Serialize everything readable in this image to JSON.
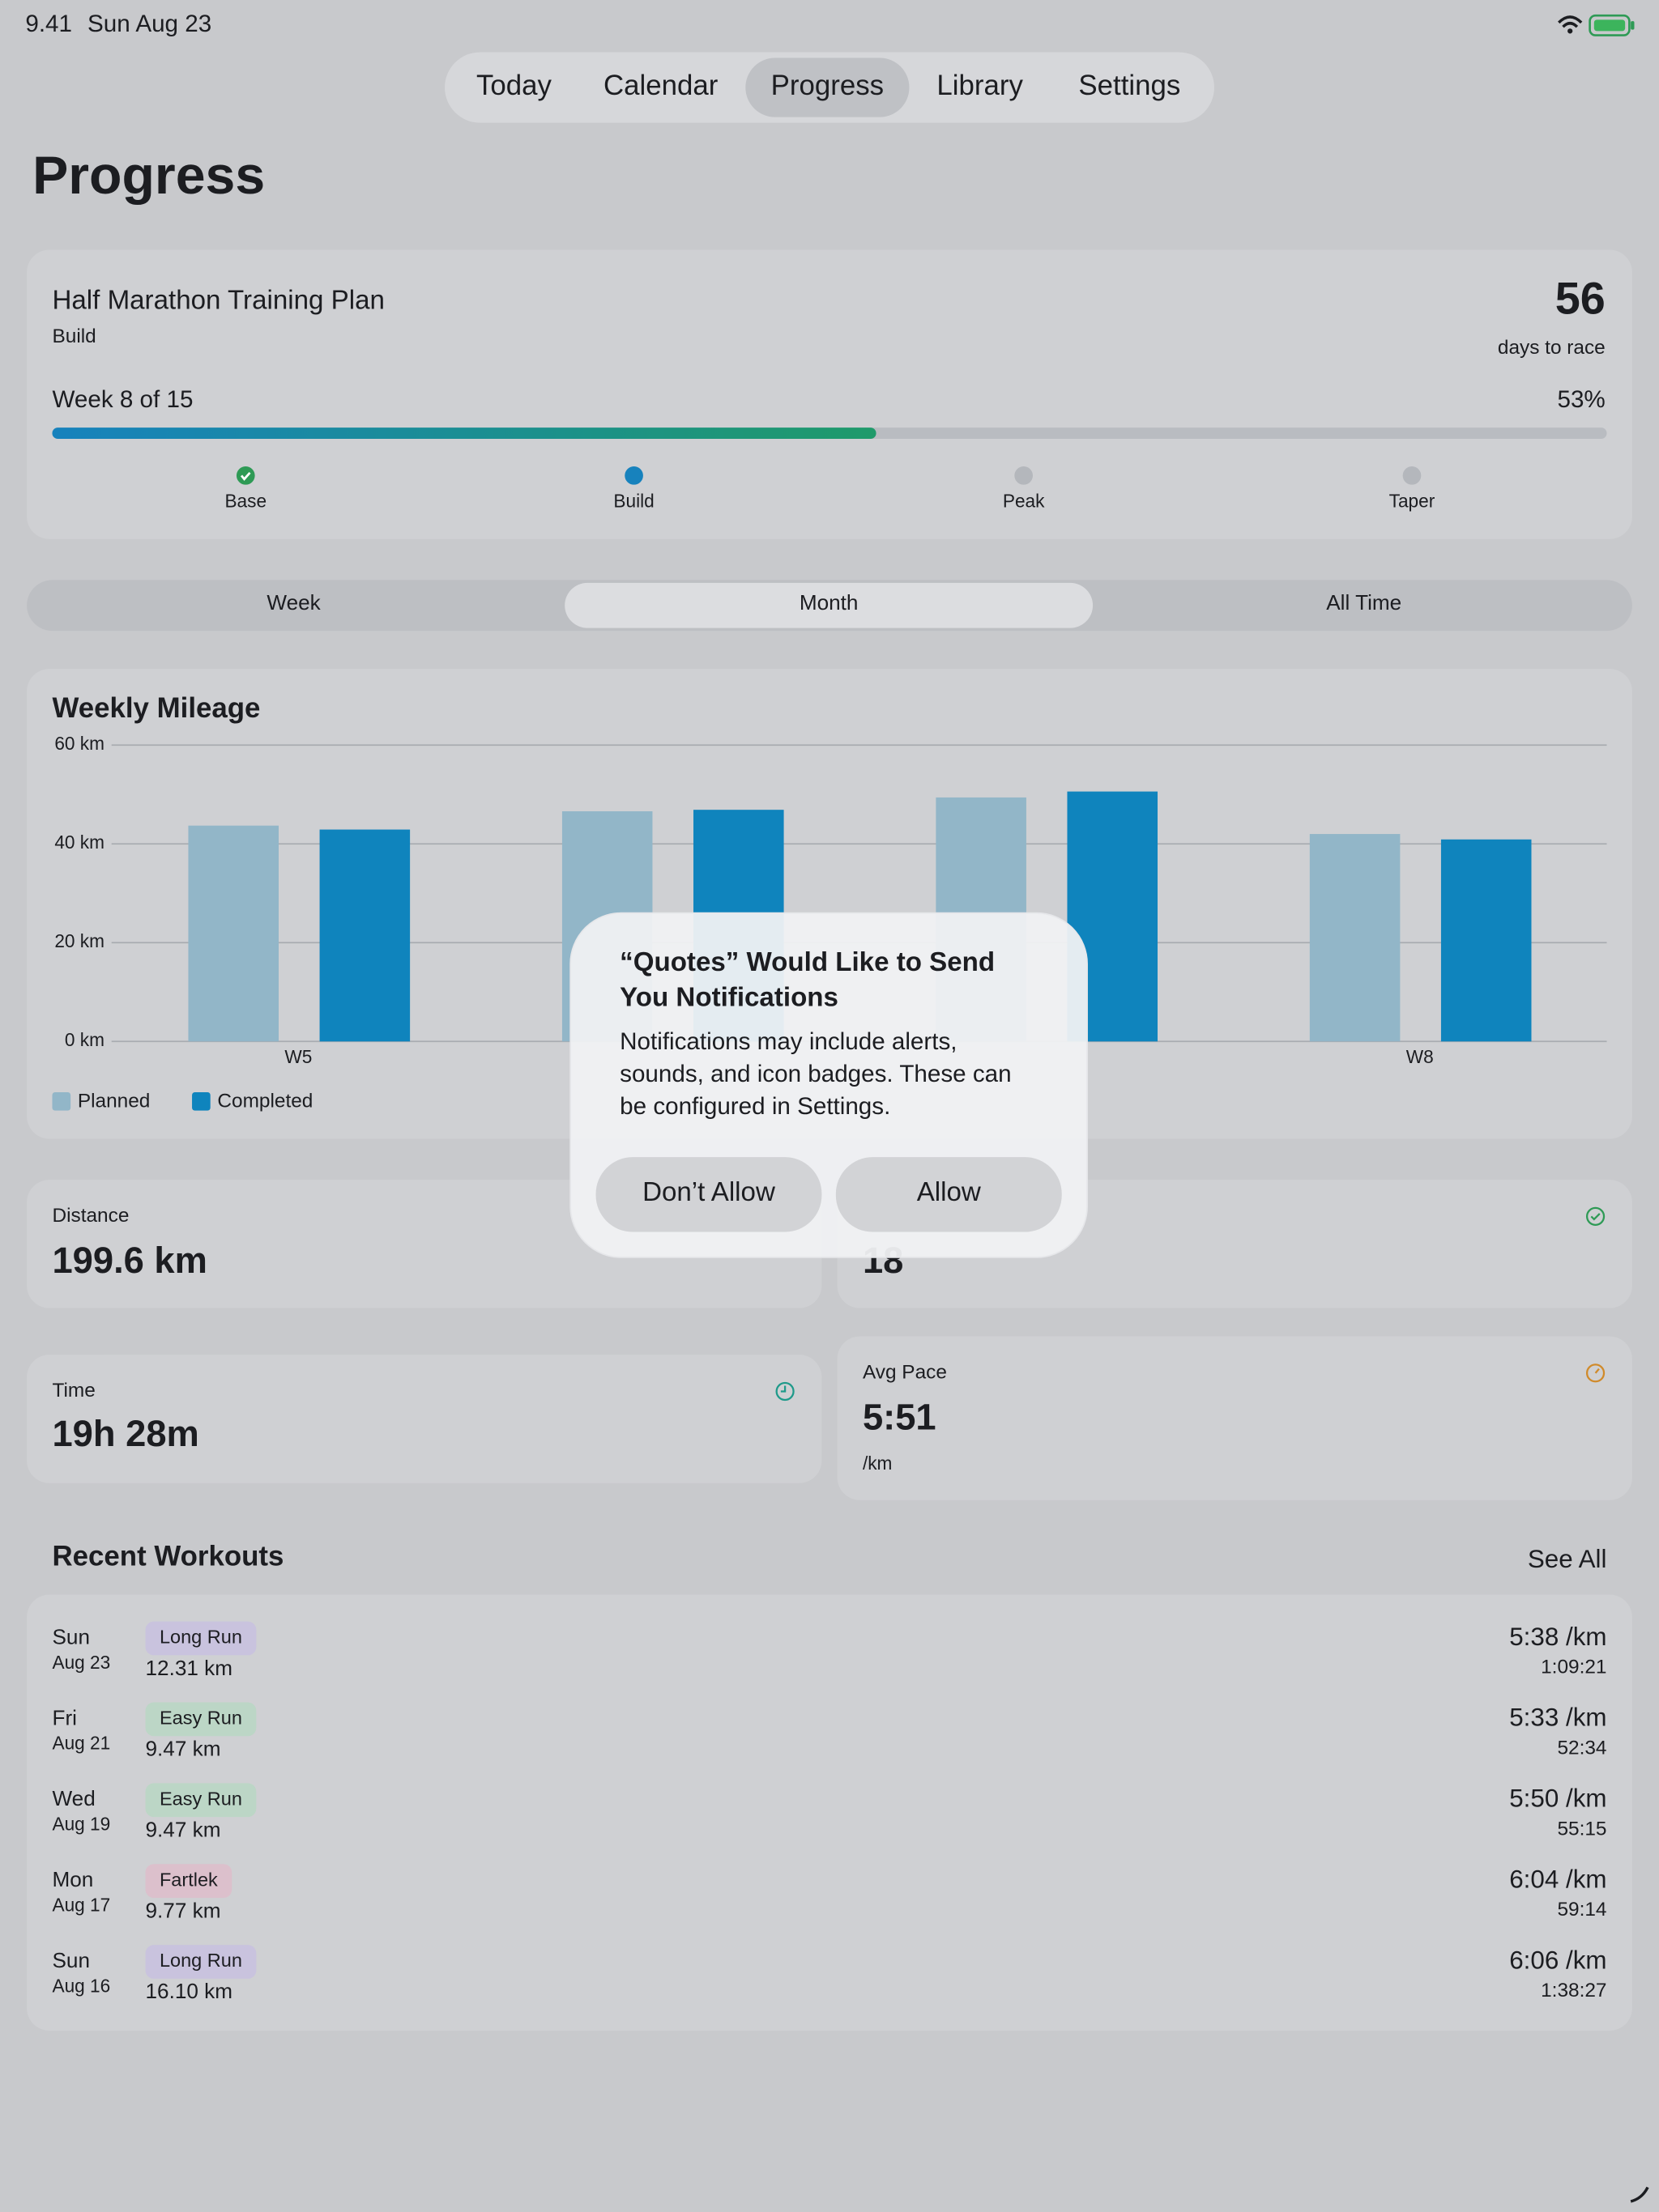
{
  "status_bar": {
    "time": "9.41",
    "date": "Sun Aug 23"
  },
  "tabs": [
    "Today",
    "Calendar",
    "Progress",
    "Library",
    "Settings"
  ],
  "page_title": "Progress",
  "plan": {
    "title": "Half Marathon Training Plan",
    "phase": "Build",
    "days": "56",
    "days_label": "days to race",
    "week": "Week 8 of 15",
    "progress": 53,
    "progress_label": "53%",
    "phases": [
      "Base",
      "Build",
      "Peak",
      "Taper"
    ]
  },
  "range_tabs": [
    "Week",
    "Month",
    "All Time"
  ],
  "chart_data": {
    "type": "bar",
    "title": "Weekly Mileage",
    "categories": [
      "W5",
      null,
      null,
      "W8"
    ],
    "series": [
      {
        "name": "Planned",
        "color": "#92b6c8",
        "values": [
          43.7,
          46.6,
          49.4,
          42
        ]
      },
      {
        "name": "Completed",
        "color": "#0f84bd",
        "values": [
          42.9,
          46.9,
          50.6,
          40.9
        ]
      }
    ],
    "ylim": [
      0,
      60
    ],
    "yticks": [
      {
        "value": 0,
        "label": "0 km"
      },
      {
        "value": 20,
        "label": "20 km"
      },
      {
        "value": 40,
        "label": "40 km"
      },
      {
        "value": 60,
        "label": "60 km"
      }
    ],
    "grid": true
  },
  "stats": {
    "distance": {
      "label": "Distance",
      "value": "199.6 km"
    },
    "runs": {
      "value": "18"
    },
    "time": {
      "label": "Time",
      "value": "19h 28m"
    },
    "pace": {
      "label": "Avg Pace",
      "value": "5:51",
      "unit": "/km"
    }
  },
  "recent": {
    "title": "Recent Workouts",
    "link": "See All",
    "workouts": [
      {
        "day": "Sun",
        "date": "Aug 23",
        "tag": "Long Run",
        "distance": "12.31 km",
        "pace": "5:38 /km",
        "duration": "1:09:21"
      },
      {
        "day": "Fri",
        "date": "Aug 21",
        "tag": "Easy Run",
        "distance": "9.47 km",
        "pace": "5:33 /km",
        "duration": "52:34"
      },
      {
        "day": "Wed",
        "date": "Aug 19",
        "tag": "Easy Run",
        "distance": "9.47 km",
        "pace": "5:50 /km",
        "duration": "55:15"
      },
      {
        "day": "Mon",
        "date": "Aug 17",
        "tag": "Fartlek",
        "distance": "9.77 km",
        "pace": "6:04 /km",
        "duration": "59:14"
      },
      {
        "day": "Sun",
        "date": "Aug 16",
        "tag": "Long Run",
        "distance": "16.10 km",
        "pace": "6:06 /km",
        "duration": "1:38:27"
      }
    ]
  },
  "dialog": {
    "title": [
      "“Quotes” Would Like to Send",
      "You Notifications"
    ],
    "message": [
      "Notifications may include alerts,",
      "sounds, and icon badges. These can",
      "be configured in Settings."
    ],
    "deny": "Don’t Allow",
    "allow": "Allow"
  }
}
